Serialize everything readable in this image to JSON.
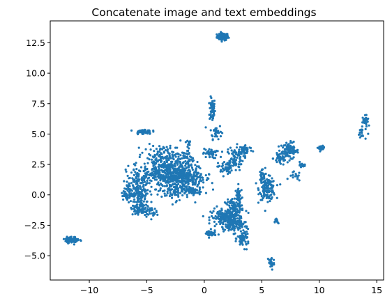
{
  "chart_data": {
    "type": "scatter",
    "title": "Concatenate image and text embeddings",
    "xlabel": "",
    "ylabel": "",
    "xlim": [
      -13.4,
      15.6
    ],
    "ylim": [
      -7.0,
      14.3
    ],
    "xticks": [
      -10,
      -5,
      0,
      5,
      10,
      15
    ],
    "xtick_labels": [
      "−10",
      "−5",
      "0",
      "5",
      "10",
      "15"
    ],
    "yticks": [
      -5.0,
      -2.5,
      0.0,
      2.5,
      5.0,
      7.5,
      10.0,
      12.5
    ],
    "ytick_labels": [
      "−5.0",
      "−2.5",
      "0.0",
      "2.5",
      "5.0",
      "7.5",
      "10.0",
      "12.5"
    ],
    "grid": false,
    "marker_color": "#1f77b4",
    "marker_size": 1.6,
    "clusters": [
      {
        "name": "top",
        "cx": 1.6,
        "cy": 13.0,
        "sx": 0.25,
        "sy": 0.15,
        "n": 90
      },
      {
        "name": "vertical-strand-top",
        "cx": 0.7,
        "cy": 7.0,
        "sx": 0.12,
        "sy": 0.5,
        "n": 70
      },
      {
        "name": "vertical-strand-bottom",
        "cx": 1.0,
        "cy": 5.2,
        "sx": 0.25,
        "sy": 0.3,
        "n": 30
      },
      {
        "name": "far-right-top",
        "cx": 14.0,
        "cy": 6.1,
        "sx": 0.12,
        "sy": 0.2,
        "n": 30
      },
      {
        "name": "far-right-strand",
        "cx": 13.7,
        "cy": 5.1,
        "sx": 0.2,
        "sy": 0.3,
        "n": 20
      },
      {
        "name": "right-mid",
        "cx": 10.2,
        "cy": 3.85,
        "sx": 0.12,
        "sy": 0.08,
        "n": 25
      },
      {
        "name": "right-cluster",
        "cx": 7.4,
        "cy": 3.6,
        "sx": 0.4,
        "sy": 0.35,
        "n": 90
      },
      {
        "name": "right-cluster-tail",
        "cx": 6.6,
        "cy": 3.0,
        "sx": 0.3,
        "sy": 0.3,
        "n": 40
      },
      {
        "name": "right-small-a",
        "cx": 8.6,
        "cy": 2.4,
        "sx": 0.2,
        "sy": 0.08,
        "n": 12
      },
      {
        "name": "right-small-b",
        "cx": 7.9,
        "cy": 1.5,
        "sx": 0.25,
        "sy": 0.2,
        "n": 15
      },
      {
        "name": "mid-right",
        "cx": 5.5,
        "cy": 0.5,
        "sx": 0.35,
        "sy": 0.45,
        "n": 140
      },
      {
        "name": "mid-right-top",
        "cx": 5.0,
        "cy": 1.6,
        "sx": 0.15,
        "sy": 0.3,
        "n": 25
      },
      {
        "name": "mid-right-low",
        "cx": 6.3,
        "cy": -2.2,
        "sx": 0.08,
        "sy": 0.15,
        "n": 12
      },
      {
        "name": "bottom-right-strand",
        "cx": 5.8,
        "cy": -5.6,
        "sx": 0.15,
        "sy": 0.3,
        "n": 30
      },
      {
        "name": "upper-mid",
        "cx": 3.6,
        "cy": 3.7,
        "sx": 0.3,
        "sy": 0.2,
        "n": 50
      },
      {
        "name": "upper-mid-b",
        "cx": 2.6,
        "cy": 3.0,
        "sx": 0.4,
        "sy": 0.5,
        "n": 90
      },
      {
        "name": "upper-mid-c",
        "cx": 0.5,
        "cy": 3.4,
        "sx": 0.3,
        "sy": 0.2,
        "n": 40
      },
      {
        "name": "upper-mid-d",
        "cx": 1.8,
        "cy": 2.2,
        "sx": 0.3,
        "sy": 0.3,
        "n": 40
      },
      {
        "name": "center-lower",
        "cx": 2.0,
        "cy": -1.9,
        "sx": 0.7,
        "sy": 0.35,
        "n": 200
      },
      {
        "name": "center-lower-right",
        "cx": 2.6,
        "cy": -1.0,
        "sx": 0.4,
        "sy": 0.3,
        "n": 70
      },
      {
        "name": "center-lower-strand",
        "cx": 3.0,
        "cy": -0.2,
        "sx": 0.15,
        "sy": 0.45,
        "n": 40
      },
      {
        "name": "center-lower-b",
        "cx": 2.6,
        "cy": -2.5,
        "sx": 0.4,
        "sy": 0.3,
        "n": 80
      },
      {
        "name": "center-lower-tail",
        "cx": 3.4,
        "cy": -3.6,
        "sx": 0.25,
        "sy": 0.35,
        "n": 60
      },
      {
        "name": "center-lower-left",
        "cx": 0.5,
        "cy": -3.2,
        "sx": 0.25,
        "sy": 0.15,
        "n": 40
      },
      {
        "name": "main-core",
        "cx": -3.0,
        "cy": 1.8,
        "sx": 1.2,
        "sy": 0.45,
        "n": 380
      },
      {
        "name": "main-core-right",
        "cx": -1.5,
        "cy": 1.3,
        "sx": 0.8,
        "sy": 0.4,
        "n": 160
      },
      {
        "name": "main-core-top",
        "cx": -3.5,
        "cy": 3.1,
        "sx": 0.9,
        "sy": 0.5,
        "n": 150
      },
      {
        "name": "main-core-topright",
        "cx": -1.5,
        "cy": 3.0,
        "sx": 0.3,
        "sy": 0.4,
        "n": 40
      },
      {
        "name": "main-core-low",
        "cx": -2.6,
        "cy": 0.4,
        "sx": 0.8,
        "sy": 0.4,
        "n": 120
      },
      {
        "name": "main-core-lowright",
        "cx": -1.0,
        "cy": 0.3,
        "sx": 0.35,
        "sy": 0.15,
        "n": 40
      },
      {
        "name": "main-core-upper",
        "cx": -1.4,
        "cy": 4.3,
        "sx": 0.15,
        "sy": 0.15,
        "n": 12
      },
      {
        "name": "left-wing",
        "cx": -5.8,
        "cy": 0.6,
        "sx": 0.5,
        "sy": 0.7,
        "n": 170
      },
      {
        "name": "left-wing-b",
        "cx": -6.6,
        "cy": 0.0,
        "sx": 0.3,
        "sy": 0.2,
        "n": 40
      },
      {
        "name": "left-wing-low",
        "cx": -5.6,
        "cy": -1.0,
        "sx": 0.4,
        "sy": 0.35,
        "n": 80
      },
      {
        "name": "left-wing-low-b",
        "cx": -4.8,
        "cy": -1.4,
        "sx": 0.3,
        "sy": 0.2,
        "n": 30
      },
      {
        "name": "left-top",
        "cx": -5.3,
        "cy": 5.2,
        "sx": 0.35,
        "sy": 0.1,
        "n": 60
      },
      {
        "name": "far-left",
        "cx": -11.5,
        "cy": -3.7,
        "sx": 0.3,
        "sy": 0.12,
        "n": 90
      }
    ]
  }
}
